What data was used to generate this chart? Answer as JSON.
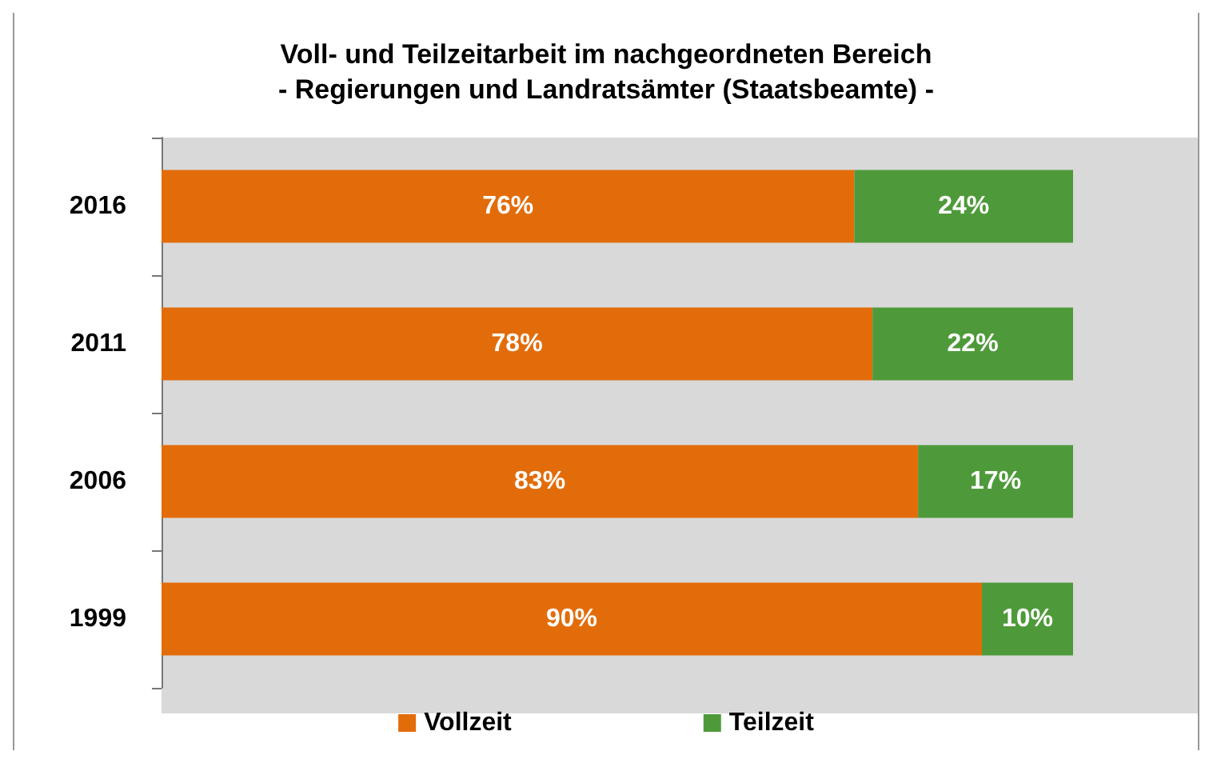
{
  "chart_data": {
    "type": "bar",
    "orientation": "horizontal",
    "stacked": true,
    "title": "Voll- und Teilzeitarbeit im nachgeordneten Bereich\n- Regierungen und Landratsämter (Staatsbeamte) -",
    "categories": [
      "2016",
      "2011",
      "2006",
      "1999"
    ],
    "series": [
      {
        "name": "Vollzeit",
        "color": "#e36c0a",
        "values": [
          76,
          78,
          83,
          90
        ],
        "value_labels": [
          "76%",
          "78%",
          "83%",
          "90%"
        ]
      },
      {
        "name": "Teilzeit",
        "color": "#4e9a3a",
        "values": [
          24,
          22,
          17,
          10
        ],
        "value_labels": [
          "24%",
          "22%",
          "17%",
          "10%"
        ]
      }
    ],
    "legend": "bottom",
    "grid": false,
    "tick_labels": "y"
  }
}
